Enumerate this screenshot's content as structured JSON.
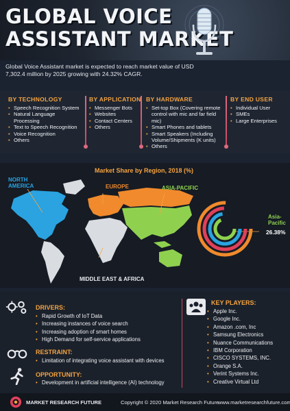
{
  "header": {
    "title": "GLOBAL VOICE\nASSISTANT MARKET",
    "intro": "Global Voice Assistant market is expected to reach market value of USD 7,302.4 million by 2025 growing with 24.32% CAGR."
  },
  "categories": [
    {
      "title": "BY TECHNOLOGY",
      "items": [
        "Speech Recognition System",
        "Natural Language Processing",
        "Text to Speech Recognition",
        "Voice Recognition",
        "Others"
      ]
    },
    {
      "title": "BY APPLICATION",
      "items": [
        "Messenger Bots",
        "Websites",
        "Contact Centers",
        "Others"
      ]
    },
    {
      "title": "BY HARDWARE",
      "items": [
        "Set-top Box (Covering remote control with mic and far field mic)",
        "Smart Phones and tablets",
        "Smart Speakers (Including Volume/Shipments (K units)",
        "Others"
      ]
    },
    {
      "title": "BY END USER",
      "items": [
        "Individual User",
        "SMEs",
        "Large Enterprises"
      ]
    }
  ],
  "map": {
    "title": "Market Share by Region, 2018 (%)",
    "regions": {
      "north_america": "NORTH\nAMERICA",
      "europe": "EUROPE",
      "asia_pacific": "ASIA-PACIFIC",
      "mea": "MIDDLE EAST & AFRICA"
    },
    "highlight": {
      "label": "Asia-\nPacific",
      "value": "26.38%"
    },
    "colors": {
      "north_america": "#2aa3e0",
      "europe": "#f08a2c",
      "asia_pacific": "#8fd14f",
      "other": "#d9dde2",
      "accent": "#f5a340",
      "ring_red": "#e0405a"
    }
  },
  "drivers": {
    "title": "DRIVERS:",
    "items": [
      "Rapid Growth of IoT Data",
      "Increasing instances of voice search",
      "Increasing adoption of smart homes",
      "High Demand for self-service applications"
    ]
  },
  "restraint": {
    "title": "RESTRAINT:",
    "items": [
      "Limitation of integrating voice assistant with devices"
    ]
  },
  "opportunity": {
    "title": "OPPORTUNITY:",
    "items": [
      "Development in artificial intelligence (AI) technology"
    ]
  },
  "key_players": {
    "title": "KEY PLAYERS:",
    "items": [
      "Apple Inc.",
      "Google Inc.",
      "Amazon .com, Inc",
      "Samsung Electronics",
      "Nuance Communications",
      "IBM Corporation",
      "CISCO SYSTEMS, INC.",
      "Orange S.A.",
      "Verint Systems Inc.",
      "Creative Virtual Ltd"
    ]
  },
  "footer": {
    "brand": "MARKET RESEARCH FUTURE",
    "copyright": "Copyright © 2020 Market Research Future",
    "url": "www.marketresearchfuture.com"
  },
  "icons": {
    "mic": "microphone-icon",
    "drivers": "gears-icon",
    "restraint": "handcuffs-icon",
    "opportunity": "runner-icon",
    "players": "people-icon"
  }
}
